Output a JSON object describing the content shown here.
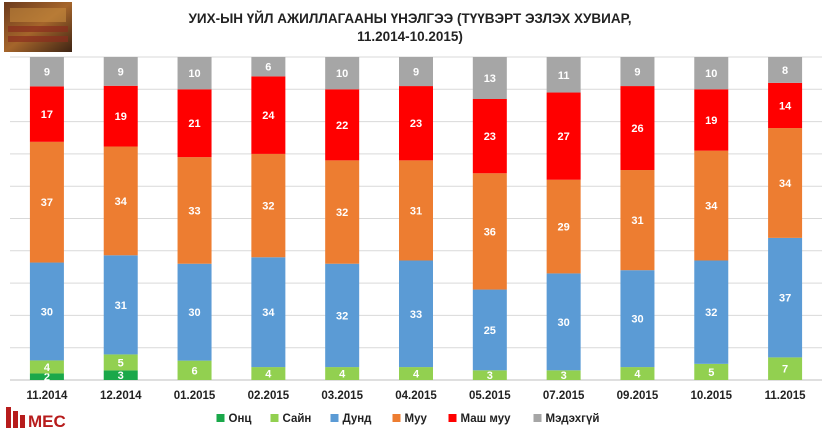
{
  "chart_data": {
    "type": "bar",
    "stacked": true,
    "title_lines": [
      "УИХ-ЫН ҮЙЛ АЖИЛЛАГААНЫ ҮНЭЛГЭЭ (ТҮҮВЭРТ ЭЗЛЭХ ХУВИАР,",
      "11.2014-10.2015)"
    ],
    "categories": [
      "11.2014",
      "12.2014",
      "01.2015",
      "02.2015",
      "03.2015",
      "04.2015",
      "05.2015",
      "07.2015",
      "09.2015",
      "10.2015",
      "11.2015"
    ],
    "series": [
      {
        "name": "Онц",
        "color": "#1aa84a",
        "values": [
          2,
          3,
          0,
          0,
          0,
          0,
          0,
          0,
          0,
          0,
          0
        ]
      },
      {
        "name": "Сайн",
        "color": "#92d050",
        "values": [
          4,
          5,
          6,
          4,
          4,
          4,
          3,
          3,
          4,
          5,
          7
        ]
      },
      {
        "name": "Дунд",
        "color": "#5b9bd5",
        "values": [
          30,
          31,
          30,
          34,
          32,
          33,
          25,
          30,
          30,
          32,
          37
        ]
      },
      {
        "name": "Муу",
        "color": "#ed7d31",
        "values": [
          37,
          34,
          33,
          32,
          32,
          31,
          36,
          29,
          31,
          34,
          34
        ]
      },
      {
        "name": "Маш муу",
        "color": "#ff0000",
        "values": [
          17,
          19,
          21,
          24,
          22,
          23,
          23,
          27,
          26,
          19,
          14
        ]
      },
      {
        "name": "Мэдэхгүй",
        "color": "#a6a6a6",
        "values": [
          9,
          9,
          10,
          6,
          10,
          9,
          13,
          11,
          9,
          10,
          8
        ]
      }
    ],
    "grid": true,
    "legend_position": "bottom"
  },
  "branding": {
    "logo_text": "MEC",
    "logo_color": "#b71c1c"
  }
}
